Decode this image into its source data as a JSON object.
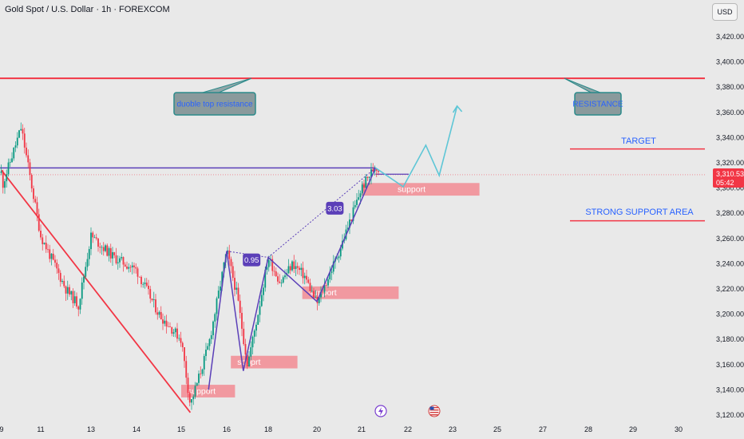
{
  "header": {
    "symbol_title": "Gold Spot / U.S. Dollar · 1h · FOREXCOM",
    "currency": "USD"
  },
  "price_badge": {
    "price": "3,310.53",
    "countdown": "05:42"
  },
  "chart_data": {
    "type": "candlestick",
    "title": "Gold Spot / U.S. Dollar · 1h · FOREXCOM",
    "y_unit": "USD",
    "ylim": [
      3115,
      3438
    ],
    "y_ticks": [
      "3,120.00",
      "3,140.00",
      "3,160.00",
      "3,180.00",
      "3,200.00",
      "3,220.00",
      "3,240.00",
      "3,260.00",
      "3,280.00",
      "3,300.00",
      "3,320.00",
      "3,340.00",
      "3,360.00",
      "3,380.00",
      "3,400.00",
      "3,420.00"
    ],
    "x_ticks": [
      "9",
      "11",
      "13",
      "14",
      "15",
      "16",
      "18",
      "20",
      "21",
      "22",
      "23",
      "25",
      "27",
      "28",
      "29",
      "30"
    ],
    "current_price": 3310.53,
    "colors": {
      "up": "#089981",
      "down": "#f23645",
      "background": "#e9e9e9"
    },
    "candles_note": "hourly candles, values estimated from the axes",
    "price_path": [
      [
        "9",
        3300
      ],
      [
        "10",
        3348
      ],
      [
        "11",
        3262
      ],
      [
        "12",
        3220
      ],
      [
        "12.5",
        3207
      ],
      [
        "13",
        3262
      ],
      [
        "13.5",
        3245
      ],
      [
        "14",
        3235
      ],
      [
        "14.5",
        3200
      ],
      [
        "15",
        3180
      ],
      [
        "15.2",
        3128
      ],
      [
        "15.6",
        3175
      ],
      [
        "16",
        3250
      ],
      [
        "16.5",
        3215
      ],
      [
        "17",
        3160
      ],
      [
        "17.5",
        3200
      ],
      [
        "18",
        3245
      ],
      [
        "18.5",
        3225
      ],
      [
        "19",
        3240
      ],
      [
        "19.5",
        3230
      ],
      [
        "20",
        3208
      ],
      [
        "20.5",
        3250
      ],
      [
        "21",
        3300
      ],
      [
        "21.3",
        3318
      ],
      [
        "21.4",
        3312
      ]
    ],
    "horizontal_lines": [
      {
        "name": "resistance",
        "y": 3387,
        "color": "#f23645"
      },
      {
        "name": "target",
        "y": 3331,
        "color": "#f23645"
      },
      {
        "name": "strong-support",
        "y": 3274,
        "color": "#f23645"
      }
    ],
    "neckline": {
      "y": 3316,
      "color": "#5b3fb8"
    },
    "trendlines": [
      {
        "from": [
          "9",
          3314
        ],
        "to": [
          "15.2",
          3122
        ],
        "color": "#f23645"
      }
    ],
    "zigzag": [
      [
        "15.6",
        3140
      ],
      [
        "16",
        3250
      ],
      [
        "16.8",
        3155
      ],
      [
        "18",
        3245
      ],
      [
        "20",
        3210
      ],
      [
        "21.3",
        3316
      ]
    ],
    "fib_labels": [
      {
        "text": "0.95",
        "x": "17.2",
        "y": 3243
      },
      {
        "text": "3.03",
        "x": "20.4",
        "y": 3284
      }
    ],
    "projection": [
      [
        "21.3",
        3316
      ],
      [
        "21.9",
        3301
      ],
      [
        "22.4",
        3334
      ],
      [
        "22.7",
        3310
      ],
      [
        "23.2",
        3365
      ]
    ],
    "support_zones": [
      {
        "label": "support",
        "x0": "15",
        "x1": "16.4",
        "y0": 3134,
        "y1": 3144
      },
      {
        "label": "sopprt",
        "x0": "16.2",
        "x1": "19.2",
        "y0": 3157,
        "y1": 3167
      },
      {
        "label": "support",
        "x0": "19.4",
        "x1": "21.8",
        "y0": 3212,
        "y1": 3222
      },
      {
        "label": "support",
        "x0": "21",
        "x1": "24.2",
        "y0": 3294,
        "y1": 3304
      }
    ],
    "annotations": [
      {
        "text": "duoble top resistance",
        "style": "callout"
      },
      {
        "text": "RESISTANCE",
        "style": "callout"
      },
      {
        "text": "TARGET",
        "style": "text"
      },
      {
        "text": "STRONG SUPPORT AREA",
        "style": "text"
      }
    ],
    "events": [
      {
        "name": "flash-event-icon"
      },
      {
        "name": "us-flag-event-icon"
      }
    ],
    "grid": false
  }
}
